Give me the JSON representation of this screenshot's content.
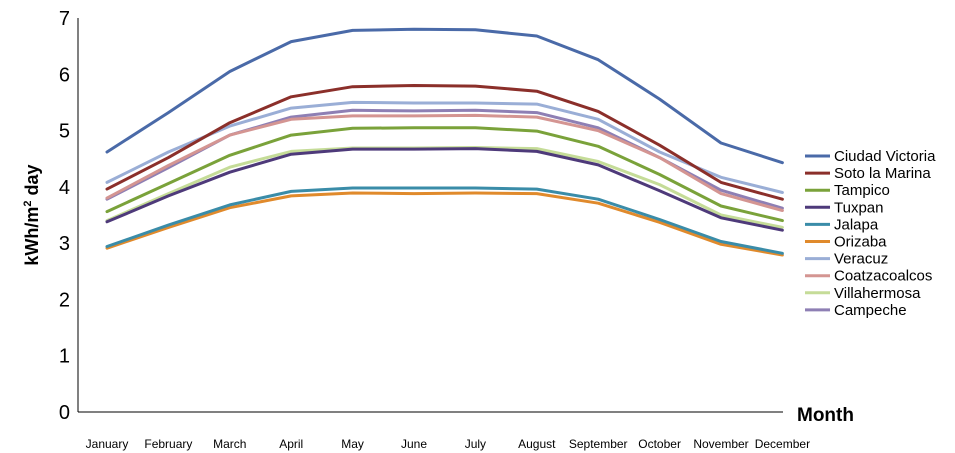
{
  "chart_data": {
    "type": "line",
    "title": "",
    "xlabel": "Month",
    "ylabel_main": "kWh/m",
    "ylabel_sup": "2",
    "ylabel_tail": " day",
    "ylim": [
      0,
      7
    ],
    "yticks": [
      "0",
      "1",
      "2",
      "3",
      "4",
      "5",
      "6",
      "7"
    ],
    "grid": false,
    "legend_position": "right",
    "categories": [
      "January",
      "February",
      "March",
      "April",
      "May",
      "June",
      "July",
      "August",
      "September",
      "October",
      "November",
      "December"
    ],
    "series": [
      {
        "name": "Ciudad Victoria",
        "color": "#4a6aa8",
        "values": [
          4.62,
          5.32,
          6.05,
          6.58,
          6.78,
          6.8,
          6.79,
          6.68,
          6.26,
          5.56,
          4.78,
          4.43
        ]
      },
      {
        "name": "Soto la Marina",
        "color": "#8b2f2a",
        "values": [
          3.96,
          4.52,
          5.14,
          5.6,
          5.78,
          5.8,
          5.79,
          5.7,
          5.34,
          4.74,
          4.08,
          3.78
        ]
      },
      {
        "name": "Tampico",
        "color": "#7aa23a",
        "values": [
          3.56,
          4.06,
          4.56,
          4.92,
          5.04,
          5.05,
          5.05,
          4.99,
          4.72,
          4.22,
          3.66,
          3.4
        ]
      },
      {
        "name": "Tuxpan",
        "color": "#4e3a7a",
        "values": [
          3.38,
          3.84,
          4.26,
          4.58,
          4.67,
          4.67,
          4.68,
          4.63,
          4.39,
          3.93,
          3.45,
          3.23
        ]
      },
      {
        "name": "Jalapa",
        "color": "#3a8ca8",
        "values": [
          2.94,
          3.32,
          3.68,
          3.92,
          3.98,
          3.98,
          3.98,
          3.96,
          3.78,
          3.42,
          3.03,
          2.82
        ]
      },
      {
        "name": "Orizaba",
        "color": "#e08a2c",
        "values": [
          2.91,
          3.28,
          3.63,
          3.84,
          3.89,
          3.88,
          3.89,
          3.88,
          3.71,
          3.37,
          2.98,
          2.79
        ]
      },
      {
        "name": "Veracuz",
        "color": "#9aaed6",
        "values": [
          4.08,
          4.62,
          5.08,
          5.4,
          5.5,
          5.49,
          5.49,
          5.47,
          5.2,
          4.62,
          4.17,
          3.9
        ]
      },
      {
        "name": "Coatzacoalcos",
        "color": "#d49592",
        "values": [
          3.8,
          4.38,
          4.92,
          5.2,
          5.26,
          5.26,
          5.27,
          5.24,
          5.0,
          4.52,
          3.88,
          3.58
        ]
      },
      {
        "name": "Villahermosa",
        "color": "#c5dc98",
        "values": [
          3.4,
          3.88,
          4.35,
          4.63,
          4.69,
          4.69,
          4.7,
          4.68,
          4.45,
          4.04,
          3.5,
          3.28
        ]
      },
      {
        "name": "Campeche",
        "color": "#8e7fb4",
        "values": [
          3.78,
          4.34,
          4.92,
          5.24,
          5.36,
          5.35,
          5.36,
          5.32,
          5.05,
          4.52,
          3.94,
          3.62
        ]
      }
    ]
  }
}
